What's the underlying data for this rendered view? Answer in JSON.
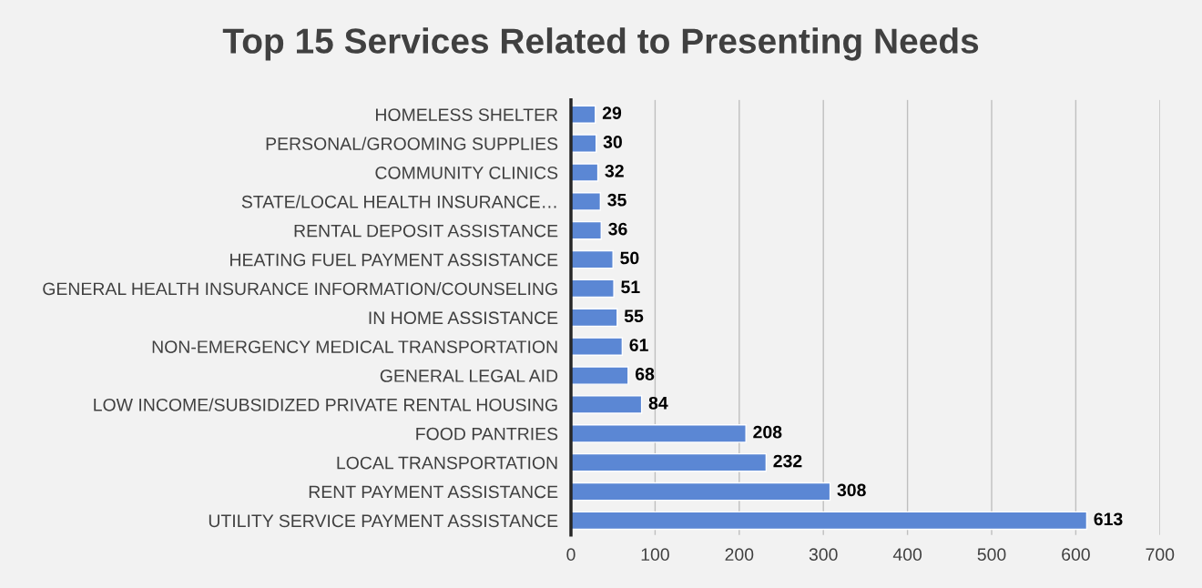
{
  "chart_data": {
    "type": "bar",
    "orientation": "horizontal",
    "title": "Top 15 Services Related to Presenting Needs",
    "categories": [
      "HOMELESS SHELTER",
      "PERSONAL/GROOMING SUPPLIES",
      "COMMUNITY CLINICS",
      "STATE/LOCAL HEALTH INSURANCE…",
      "RENTAL DEPOSIT ASSISTANCE",
      "HEATING FUEL PAYMENT ASSISTANCE",
      "GENERAL HEALTH INSURANCE INFORMATION/COUNSELING",
      "IN HOME ASSISTANCE",
      "NON-EMERGENCY MEDICAL TRANSPORTATION",
      "GENERAL LEGAL AID",
      "LOW INCOME/SUBSIDIZED PRIVATE RENTAL HOUSING",
      "FOOD PANTRIES",
      "LOCAL TRANSPORTATION",
      "RENT PAYMENT ASSISTANCE",
      "UTILITY SERVICE PAYMENT ASSISTANCE"
    ],
    "values": [
      29,
      30,
      32,
      35,
      36,
      50,
      51,
      55,
      61,
      68,
      84,
      208,
      232,
      308,
      613
    ],
    "color": "#5b87d4",
    "xlim": [
      0,
      700
    ],
    "xticks": [
      0,
      100,
      200,
      300,
      400,
      500,
      600,
      700
    ],
    "grid": "x",
    "data_labels": true,
    "legend": false
  }
}
